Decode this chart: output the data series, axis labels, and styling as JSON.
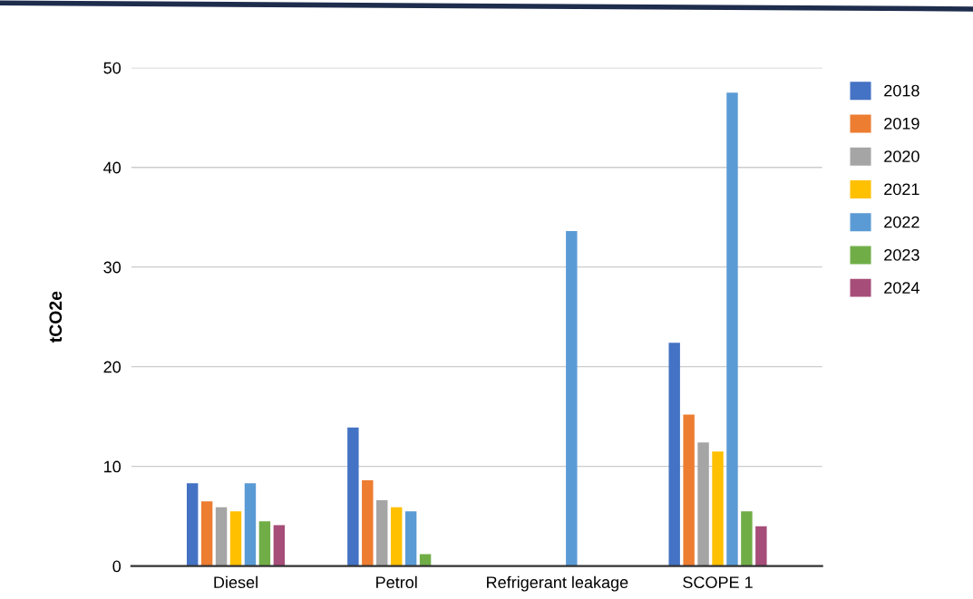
{
  "chart_data": {
    "type": "bar",
    "ylabel": "tCO2e",
    "categories": [
      "Diesel",
      "Petrol",
      "Refrigerant leakage",
      "SCOPE 1"
    ],
    "series": [
      {
        "name": "2018",
        "color": "#4472c4",
        "values": [
          8.3,
          13.9,
          null,
          22.4
        ]
      },
      {
        "name": "2019",
        "color": "#ed7d31",
        "values": [
          6.5,
          8.6,
          null,
          15.2
        ]
      },
      {
        "name": "2020",
        "color": "#a5a5a5",
        "values": [
          5.9,
          6.6,
          null,
          12.4
        ]
      },
      {
        "name": "2021",
        "color": "#ffc000",
        "values": [
          5.5,
          5.9,
          null,
          11.5
        ]
      },
      {
        "name": "2022",
        "color": "#5b9bd5",
        "values": [
          8.3,
          5.5,
          33.6,
          47.5
        ]
      },
      {
        "name": "2023",
        "color": "#70ad47",
        "values": [
          4.5,
          1.2,
          null,
          5.5
        ]
      },
      {
        "name": "2024",
        "color": "#a64d79",
        "values": [
          4.1,
          null,
          null,
          4.0
        ]
      }
    ],
    "ylim": [
      0,
      50
    ],
    "yticks": [
      0,
      10,
      20,
      30,
      40,
      50
    ],
    "grid": "y",
    "legend": "right"
  }
}
